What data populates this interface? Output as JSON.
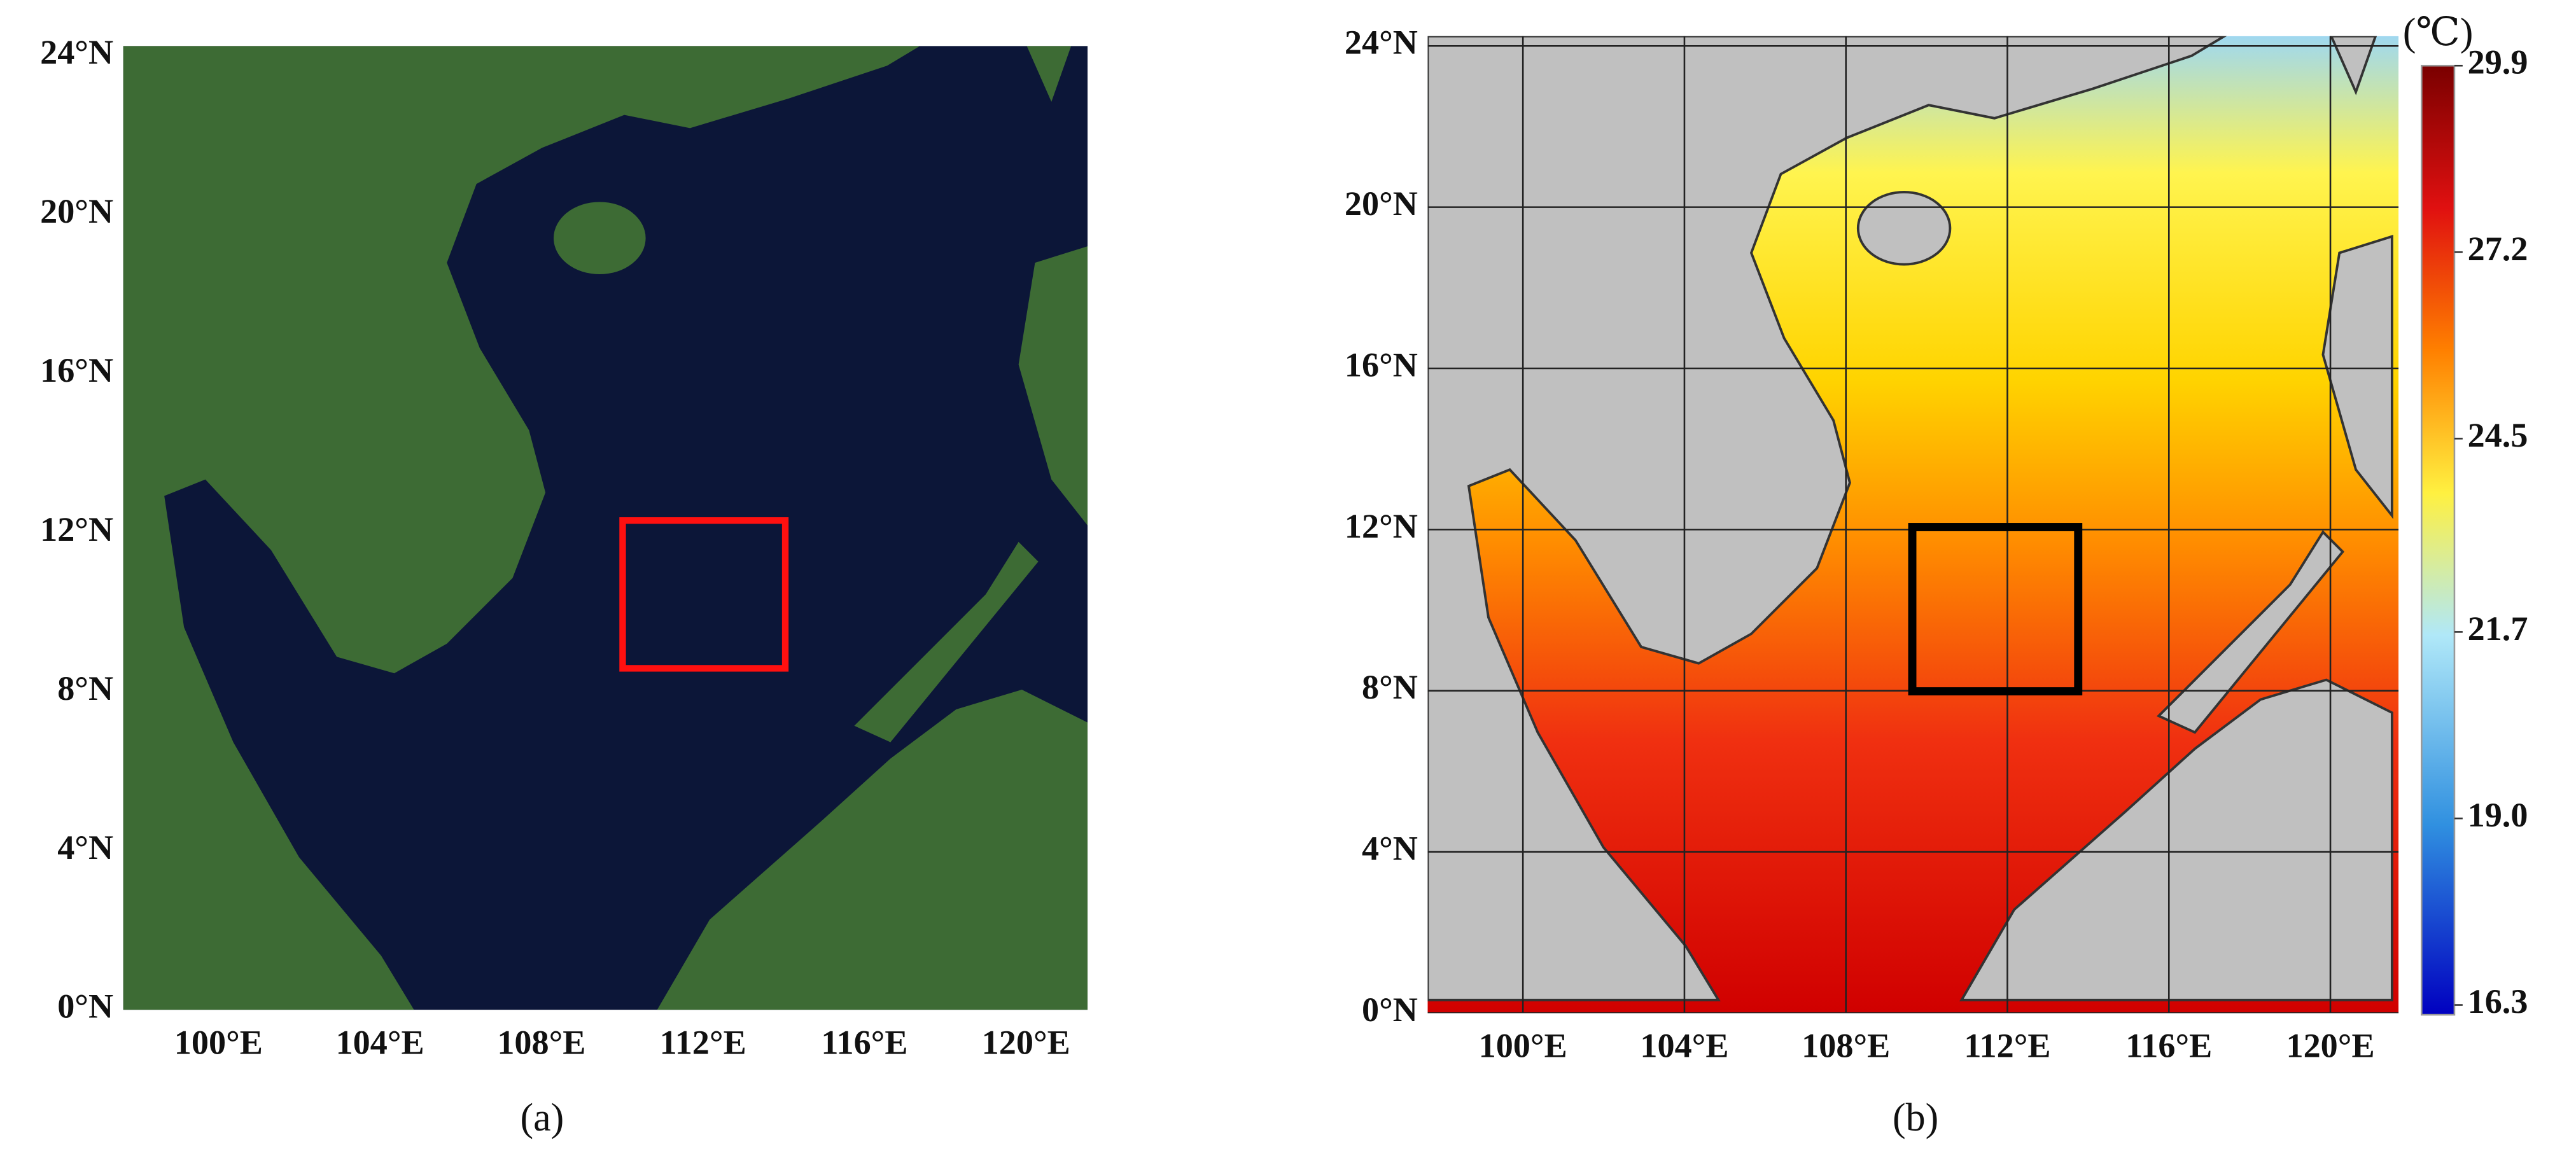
{
  "panels": {
    "a": {
      "lat_labels": [
        "24°N",
        "20°N",
        "16°N",
        "12°N",
        "8°N",
        "4°N",
        "0°N"
      ],
      "lon_labels": [
        "100°E",
        "104°E",
        "108°E",
        "112°E",
        "116°E",
        "120°E"
      ],
      "caption": "(a)"
    },
    "b": {
      "lat_labels": [
        "24°N",
        "20°N",
        "16°N",
        "12°N",
        "8°N",
        "4°N",
        "0°N"
      ],
      "lon_labels": [
        "100°E",
        "104°E",
        "108°E",
        "112°E",
        "116°E",
        "120°E"
      ],
      "caption": "(b)"
    }
  },
  "colorbar": {
    "unit": "(℃)",
    "ticks": [
      29.9,
      27.2,
      24.5,
      21.7,
      {
        "value": 19,
        "label": "19.0"
      },
      16.3
    ]
  }
}
